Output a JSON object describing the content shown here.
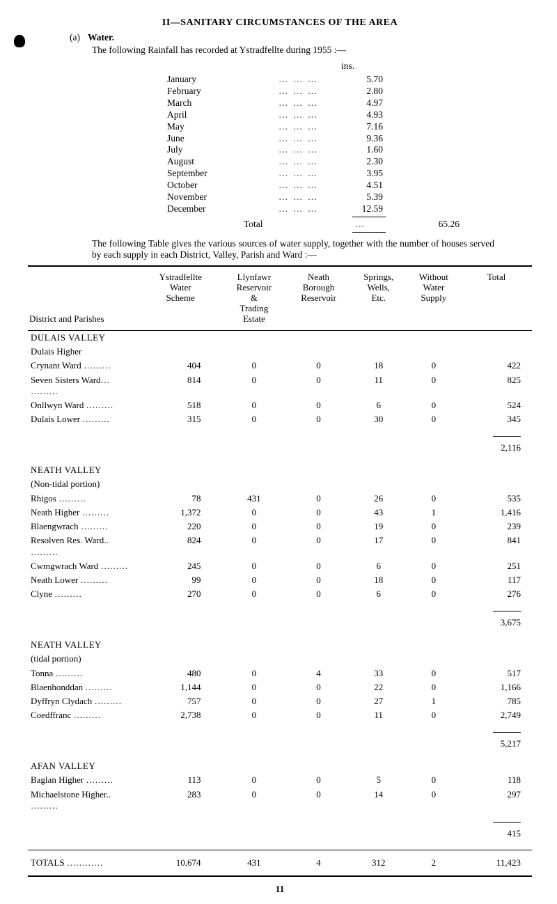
{
  "heading": "II—SANITARY CIRCUMSTANCES OF THE AREA",
  "section_a": {
    "tag": "(a)",
    "label": "Water."
  },
  "intro": "The following Rainfall has recorded at Ystradfellte during 1955 :—",
  "rainfall": {
    "unit_header": "ins.",
    "rows": [
      {
        "month": "January",
        "value": "5.70"
      },
      {
        "month": "February",
        "value": "2.80"
      },
      {
        "month": "March",
        "value": "4.97"
      },
      {
        "month": "April",
        "value": "4.93"
      },
      {
        "month": "May",
        "value": "7.16"
      },
      {
        "month": "June",
        "value": "9.36"
      },
      {
        "month": "July",
        "value": "1.60"
      },
      {
        "month": "August",
        "value": "2.30"
      },
      {
        "month": "September",
        "value": "3.95"
      },
      {
        "month": "October",
        "value": "4.51"
      },
      {
        "month": "November",
        "value": "5.39"
      },
      {
        "month": "December",
        "value": "12.59"
      }
    ],
    "total_label": "Total",
    "total_value": "65.26"
  },
  "para": "The following Table gives the various sources of water supply, together with the number of houses served by each supply in each District, Valley, Parish and Ward :—",
  "table": {
    "columns": [
      "District and Parishes",
      "Ystradfellte Water Scheme",
      "Llynfawr Reservoir & Trading Estate",
      "Neath Borough Reservoir",
      "Springs, Wells, Etc.",
      "Without Water Supply",
      "Total"
    ],
    "groups": [
      {
        "title": "DULAIS VALLEY",
        "subtitle": "Dulais Higher",
        "rows": [
          {
            "d": "Crynant Ward",
            "c": [
              "404",
              "0",
              "0",
              "18",
              "0",
              "422"
            ]
          },
          {
            "d": "Seven Sisters Ward…",
            "c": [
              "814",
              "0",
              "0",
              "11",
              "0",
              "825"
            ]
          },
          {
            "d": "Onllwyn Ward",
            "c": [
              "518",
              "0",
              "0",
              "6",
              "0",
              "524"
            ]
          },
          {
            "d": "Dulais Lower",
            "c": [
              "315",
              "0",
              "0",
              "30",
              "0",
              "345"
            ]
          }
        ],
        "subtotal": "2,116"
      },
      {
        "title": "NEATH VALLEY",
        "subtitle": "(Non-tidal portion)",
        "rows": [
          {
            "d": "Rhigos",
            "c": [
              "78",
              "431",
              "0",
              "26",
              "0",
              "535"
            ]
          },
          {
            "d": "Neath Higher",
            "c": [
              "1,372",
              "0",
              "0",
              "43",
              "1",
              "1,416"
            ]
          },
          {
            "d": "Blaengwrach",
            "c": [
              "220",
              "0",
              "0",
              "19",
              "0",
              "239"
            ]
          },
          {
            "d": "Resolven Res. Ward..",
            "c": [
              "824",
              "0",
              "0",
              "17",
              "0",
              "841"
            ]
          },
          {
            "d": "  Cwmgwrach Ward",
            "c": [
              "245",
              "0",
              "0",
              "6",
              "0",
              "251"
            ]
          },
          {
            "d": "Neath Lower",
            "c": [
              "99",
              "0",
              "0",
              "18",
              "0",
              "117"
            ]
          },
          {
            "d": "Clyne",
            "c": [
              "270",
              "0",
              "0",
              "6",
              "0",
              "276"
            ]
          }
        ],
        "subtotal": "3,675"
      },
      {
        "title": "NEATH VALLEY",
        "subtitle": "(tidal portion)",
        "rows": [
          {
            "d": "Tonna",
            "c": [
              "480",
              "0",
              "4",
              "33",
              "0",
              "517"
            ]
          },
          {
            "d": "Blaenhonddan",
            "c": [
              "1,144",
              "0",
              "0",
              "22",
              "0",
              "1,166"
            ]
          },
          {
            "d": "Dyffryn Clydach",
            "c": [
              "757",
              "0",
              "0",
              "27",
              "1",
              "785"
            ]
          },
          {
            "d": "Coedffranc",
            "c": [
              "2,738",
              "0",
              "0",
              "11",
              "0",
              "2,749"
            ]
          }
        ],
        "subtotal": "5,217"
      },
      {
        "title": "AFAN VALLEY",
        "subtitle": "",
        "rows": [
          {
            "d": "Baglan Higher",
            "c": [
              "113",
              "0",
              "0",
              "5",
              "0",
              "118"
            ]
          },
          {
            "d": "Michaelstone Higher..",
            "c": [
              "283",
              "0",
              "0",
              "14",
              "0",
              "297"
            ]
          }
        ],
        "subtotal": "415"
      }
    ],
    "totals": {
      "label": "TOTALS",
      "c": [
        "10,674",
        "431",
        "4",
        "312",
        "2",
        "11,423"
      ]
    }
  },
  "page_number": "11"
}
